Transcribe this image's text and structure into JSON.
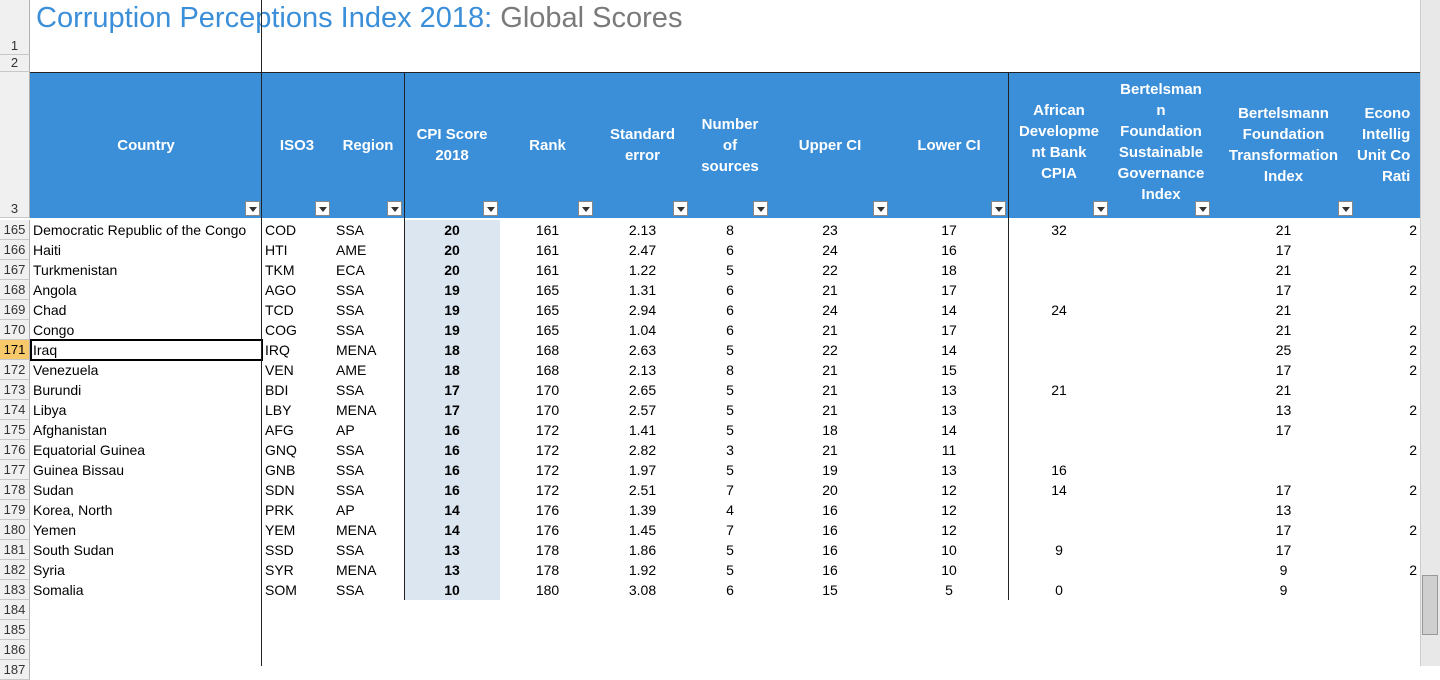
{
  "title": {
    "main": "Corruption Perceptions Index 2018:",
    "sub": "Global Scores"
  },
  "row_numbers": {
    "top": [
      1,
      2,
      3
    ],
    "bottom": [
      184,
      185,
      186,
      187
    ]
  },
  "table": {
    "columns": [
      "Country",
      "ISO3",
      "Region",
      "CPI Score\n2018",
      "Rank",
      "Standard\nerror",
      "Number\nof\nsources",
      "Upper CI",
      "Lower CI",
      "African\nDevelopme\nnt Bank\nCPIA",
      "Bertelsman\nn\nFoundation\nSustainable\nGovernance\nIndex",
      "Bertelsmann\nFoundation\nTransformation\nIndex",
      "Econo\nIntellig\nUnit Co\nRati"
    ],
    "rows": [
      [
        165,
        "Democratic Republic of the Congo",
        "COD",
        "SSA",
        20,
        161,
        2.13,
        8,
        23,
        17,
        32,
        null,
        21,
        "2"
      ],
      [
        166,
        "Haiti",
        "HTI",
        "AME",
        20,
        161,
        2.47,
        6,
        24,
        16,
        null,
        null,
        17,
        null
      ],
      [
        167,
        "Turkmenistan",
        "TKM",
        "ECA",
        20,
        161,
        1.22,
        5,
        22,
        18,
        null,
        null,
        21,
        "2"
      ],
      [
        168,
        "Angola",
        "AGO",
        "SSA",
        19,
        165,
        1.31,
        6,
        21,
        17,
        null,
        null,
        17,
        "2"
      ],
      [
        169,
        "Chad",
        "TCD",
        "SSA",
        19,
        165,
        2.94,
        6,
        24,
        14,
        24,
        null,
        21,
        null
      ],
      [
        170,
        "Congo",
        "COG",
        "SSA",
        19,
        165,
        1.04,
        6,
        21,
        17,
        null,
        null,
        21,
        "2"
      ],
      [
        171,
        "Iraq",
        "IRQ",
        "MENA",
        18,
        168,
        2.63,
        5,
        22,
        14,
        null,
        null,
        25,
        "2"
      ],
      [
        172,
        "Venezuela",
        "VEN",
        "AME",
        18,
        168,
        2.13,
        8,
        21,
        15,
        null,
        null,
        17,
        "2"
      ],
      [
        173,
        "Burundi",
        "BDI",
        "SSA",
        17,
        170,
        2.65,
        5,
        21,
        13,
        21,
        null,
        21,
        null
      ],
      [
        174,
        "Libya",
        "LBY",
        "MENA",
        17,
        170,
        2.57,
        5,
        21,
        13,
        null,
        null,
        13,
        "2"
      ],
      [
        175,
        "Afghanistan",
        "AFG",
        "AP",
        16,
        172,
        1.41,
        5,
        18,
        14,
        null,
        null,
        17,
        null
      ],
      [
        176,
        "Equatorial Guinea",
        "GNQ",
        "SSA",
        16,
        172,
        2.82,
        3,
        21,
        11,
        null,
        null,
        null,
        "2"
      ],
      [
        177,
        "Guinea Bissau",
        "GNB",
        "SSA",
        16,
        172,
        1.97,
        5,
        19,
        13,
        16,
        null,
        null,
        null
      ],
      [
        178,
        "Sudan",
        "SDN",
        "SSA",
        16,
        172,
        2.51,
        7,
        20,
        12,
        14,
        null,
        17,
        "2"
      ],
      [
        179,
        "Korea, North",
        "PRK",
        "AP",
        14,
        176,
        1.39,
        4,
        16,
        12,
        null,
        null,
        13,
        null
      ],
      [
        180,
        "Yemen",
        "YEM",
        "MENA",
        14,
        176,
        1.45,
        7,
        16,
        12,
        null,
        null,
        17,
        "2"
      ],
      [
        181,
        "South Sudan",
        "SSD",
        "SSA",
        13,
        178,
        1.86,
        5,
        16,
        10,
        9,
        null,
        17,
        null
      ],
      [
        182,
        "Syria",
        "SYR",
        "MENA",
        13,
        178,
        1.92,
        5,
        16,
        10,
        null,
        null,
        9,
        "2"
      ],
      [
        183,
        "Somalia",
        "SOM",
        "SSA",
        10,
        180,
        3.08,
        6,
        15,
        5,
        0,
        null,
        9,
        null
      ]
    ]
  }
}
